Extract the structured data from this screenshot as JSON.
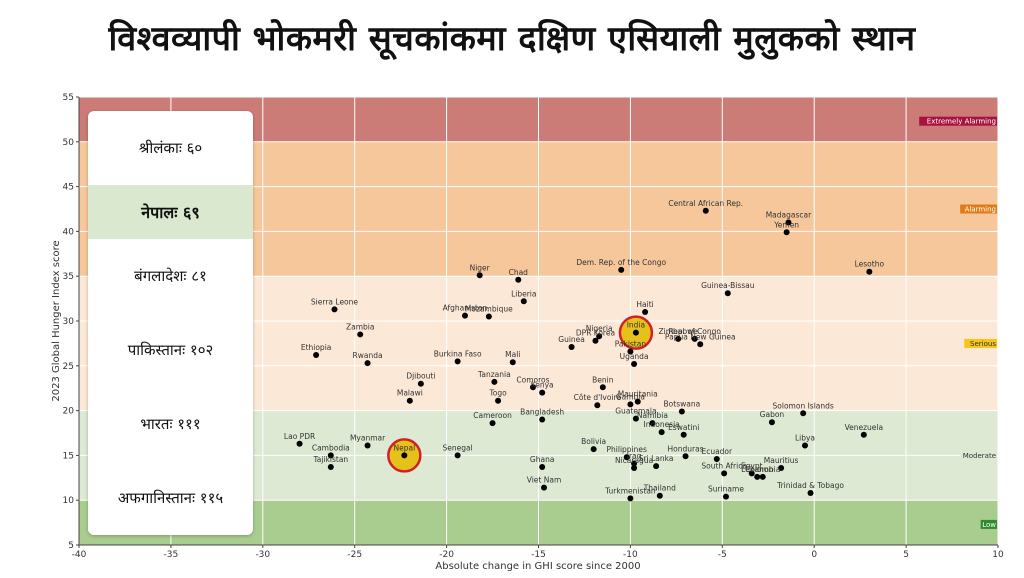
{
  "title": "विश्वव्यापी भोकमरी सूचकांकमा दक्षिण एसियाली मुलुकको स्थान",
  "ranks": [
    {
      "label": "श्रीलंकाः ६०",
      "highlight": false
    },
    {
      "label": "नेपालः ६९",
      "highlight": true
    },
    {
      "label": "बंगलादेशः ८१",
      "highlight": false
    },
    {
      "label": "पाकिस्तानः १०२",
      "highlight": false
    },
    {
      "label": "भारतः १११",
      "highlight": false
    },
    {
      "label": "अफगानिस्तानः ११५",
      "highlight": false
    }
  ],
  "chart_data": {
    "type": "scatter",
    "xlabel": "Absolute change in GHI score since 2000",
    "ylabel": "2023 Global Hunger Index score",
    "xlim": [
      -40,
      10
    ],
    "ylim": [
      5,
      55
    ],
    "xticks": [
      -40,
      -35,
      -30,
      -25,
      -20,
      -15,
      -10,
      -5,
      0,
      5,
      10
    ],
    "yticks": [
      5,
      10,
      15,
      20,
      25,
      30,
      35,
      40,
      45,
      50,
      55
    ],
    "grid": true,
    "bands": [
      {
        "name": "Low",
        "from": 5,
        "to": 10,
        "color": "#a9cc8f",
        "tag_color": "#2e8b2e"
      },
      {
        "name": "Moderate",
        "from": 10,
        "to": 20,
        "color": "#dde9d3",
        "tag_color": "#dde9d3"
      },
      {
        "name": "Serious",
        "from": 20,
        "to": 35,
        "color": "#fce8d6",
        "tag_color": "#f5c518"
      },
      {
        "name": "Alarming",
        "from": 35,
        "to": 50,
        "color": "#f5c79b",
        "tag_color": "#e07b1a"
      },
      {
        "name": "Extremely Alarming",
        "from": 50,
        "to": 55,
        "color": "#cc7c76",
        "tag_color": "#a8123f"
      }
    ],
    "highlights": [
      "Nepal",
      "India"
    ],
    "points": [
      {
        "name": "Central African Rep.",
        "x": -5.9,
        "y": 42.3
      },
      {
        "name": "Madagascar",
        "x": -1.4,
        "y": 41.0
      },
      {
        "name": "Yemen",
        "x": -1.5,
        "y": 39.9
      },
      {
        "name": "Dem. Rep. of the Congo",
        "x": -10.5,
        "y": 35.7
      },
      {
        "name": "Lesotho",
        "x": 3.0,
        "y": 35.5
      },
      {
        "name": "Niger",
        "x": -18.2,
        "y": 35.1
      },
      {
        "name": "Chad",
        "x": -16.1,
        "y": 34.6
      },
      {
        "name": "Guinea-Bissau",
        "x": -4.7,
        "y": 33.1
      },
      {
        "name": "Liberia",
        "x": -15.8,
        "y": 32.2
      },
      {
        "name": "Sierra Leone",
        "x": -26.1,
        "y": 31.3
      },
      {
        "name": "Haiti",
        "x": -9.2,
        "y": 31.0
      },
      {
        "name": "Afghanistan",
        "x": -19.0,
        "y": 30.6
      },
      {
        "name": "Mozambique",
        "x": -17.7,
        "y": 30.5
      },
      {
        "name": "India",
        "x": -9.7,
        "y": 28.7
      },
      {
        "name": "Zambia",
        "x": -24.7,
        "y": 28.5
      },
      {
        "name": "Nigeria",
        "x": -11.7,
        "y": 28.3
      },
      {
        "name": "DPR Korea",
        "x": -11.9,
        "y": 27.8
      },
      {
        "name": "Zimbabwe",
        "x": -7.4,
        "y": 28.0
      },
      {
        "name": "Rep. of Congo",
        "x": -6.5,
        "y": 28.0
      },
      {
        "name": "Papua New Guinea",
        "x": -6.2,
        "y": 27.4
      },
      {
        "name": "Guinea",
        "x": -13.2,
        "y": 27.1
      },
      {
        "name": "Pakistan",
        "x": -10.0,
        "y": 26.6
      },
      {
        "name": "Ethiopia",
        "x": -27.1,
        "y": 26.2
      },
      {
        "name": "Burkina Faso",
        "x": -19.4,
        "y": 25.5
      },
      {
        "name": "Mali",
        "x": -16.4,
        "y": 25.4
      },
      {
        "name": "Rwanda",
        "x": -24.3,
        "y": 25.3
      },
      {
        "name": "Uganda",
        "x": -9.8,
        "y": 25.2
      },
      {
        "name": "Djibouti",
        "x": -21.4,
        "y": 23.0
      },
      {
        "name": "Tanzania",
        "x": -17.4,
        "y": 23.2
      },
      {
        "name": "Comoros",
        "x": -15.3,
        "y": 22.6
      },
      {
        "name": "Benin",
        "x": -11.5,
        "y": 22.6
      },
      {
        "name": "Kenya",
        "x": -14.8,
        "y": 22.0
      },
      {
        "name": "Malawi",
        "x": -22.0,
        "y": 21.1
      },
      {
        "name": "Togo",
        "x": -17.2,
        "y": 21.1
      },
      {
        "name": "Mauritania",
        "x": -9.6,
        "y": 21.0
      },
      {
        "name": "Côte d'Ivoire",
        "x": -11.8,
        "y": 20.6
      },
      {
        "name": "Gambia",
        "x": -10.0,
        "y": 20.7
      },
      {
        "name": "Botswana",
        "x": -7.2,
        "y": 19.9
      },
      {
        "name": "Solomon Islands",
        "x": -0.6,
        "y": 19.7
      },
      {
        "name": "Guatemala",
        "x": -9.7,
        "y": 19.1
      },
      {
        "name": "Bangladesh",
        "x": -14.8,
        "y": 19.0
      },
      {
        "name": "Cameroon",
        "x": -17.5,
        "y": 18.6
      },
      {
        "name": "Namibia",
        "x": -8.8,
        "y": 18.6
      },
      {
        "name": "Gabon",
        "x": -2.3,
        "y": 18.7
      },
      {
        "name": "Indonesia",
        "x": -8.3,
        "y": 17.6
      },
      {
        "name": "Eswatini",
        "x": -7.1,
        "y": 17.3
      },
      {
        "name": "Venezuela",
        "x": 2.7,
        "y": 17.3
      },
      {
        "name": "Lao PDR",
        "x": -28.0,
        "y": 16.3
      },
      {
        "name": "Myanmar",
        "x": -24.3,
        "y": 16.1
      },
      {
        "name": "Libya",
        "x": -0.5,
        "y": 16.1
      },
      {
        "name": "Bolivia",
        "x": -12.0,
        "y": 15.7
      },
      {
        "name": "Nepal",
        "x": -22.3,
        "y": 15.0
      },
      {
        "name": "Cambodia",
        "x": -26.3,
        "y": 15.0
      },
      {
        "name": "Senegal",
        "x": -19.4,
        "y": 15.0
      },
      {
        "name": "Honduras",
        "x": -7.0,
        "y": 14.9
      },
      {
        "name": "Philippines",
        "x": -10.2,
        "y": 14.8
      },
      {
        "name": "Ecuador",
        "x": -5.3,
        "y": 14.6
      },
      {
        "name": "Iraq",
        "x": -9.8,
        "y": 14.1
      },
      {
        "name": "Sri Lanka",
        "x": -8.6,
        "y": 13.8
      },
      {
        "name": "Nicaragua",
        "x": -9.8,
        "y": 13.6
      },
      {
        "name": "Mauritius",
        "x": -1.8,
        "y": 13.6
      },
      {
        "name": "Tajikistan",
        "x": -26.3,
        "y": 13.7
      },
      {
        "name": "Ghana",
        "x": -14.8,
        "y": 13.7
      },
      {
        "name": "South Africa",
        "x": -4.9,
        "y": 13.0
      },
      {
        "name": "Egypt",
        "x": -3.4,
        "y": 13.0
      },
      {
        "name": "Lebanon",
        "x": -3.1,
        "y": 12.6
      },
      {
        "name": "Colombia",
        "x": -2.8,
        "y": 12.6
      },
      {
        "name": "Viet Nam",
        "x": -14.7,
        "y": 11.4
      },
      {
        "name": "Trinidad & Tobago",
        "x": -0.2,
        "y": 10.8
      },
      {
        "name": "Thailand",
        "x": -8.4,
        "y": 10.5
      },
      {
        "name": "Suriname",
        "x": -4.8,
        "y": 10.4
      },
      {
        "name": "Turkmenistan",
        "x": -10.0,
        "y": 10.2
      }
    ]
  }
}
